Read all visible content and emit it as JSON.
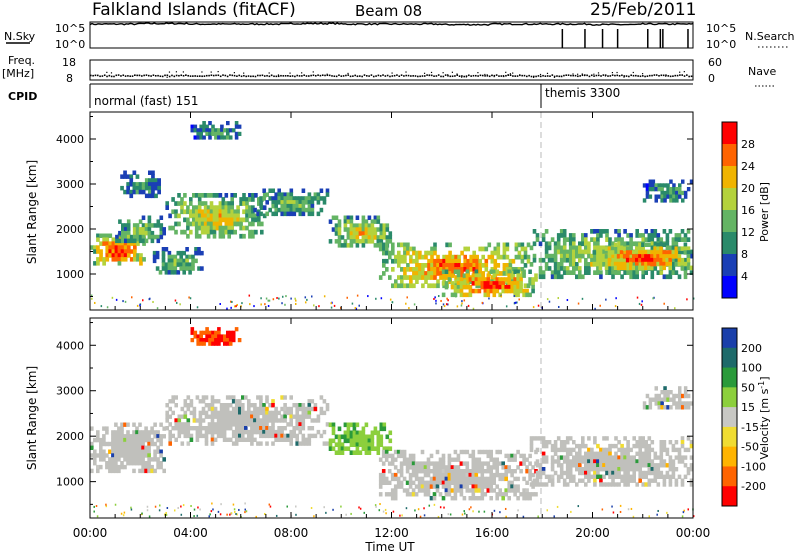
{
  "header": {
    "title": "Falkland Islands (fitACF)",
    "beam": "Beam 08",
    "date": "25/Feb/2011"
  },
  "colors": {
    "axis": "#000000",
    "marker": "#bbbbbb",
    "gs_gray": "#c0c0bc"
  },
  "chart_data": [
    {
      "type": "line",
      "name_label": "N.Sky",
      "right_label": "N.Search",
      "y_ticks_left": [
        "10^5",
        "10^0"
      ],
      "y_ticks_right": [
        "10^5",
        "10^0"
      ],
      "x": [
        "00:00",
        "02:00",
        "04:00",
        "06:00",
        "08:00",
        "10:00",
        "12:00",
        "14:00",
        "16:00",
        "18:00",
        "20:00",
        "22:00",
        "23:59"
      ],
      "series": [
        {
          "values": [
            4.6,
            4.7,
            4.6,
            4.6,
            4.7,
            4.6,
            4.6,
            4.5,
            4.6,
            4.6,
            4.5,
            4.6,
            4.5
          ]
        }
      ],
      "search_spikes_ut": [
        18.8,
        19.7,
        20.4,
        21.0,
        22.2,
        22.7,
        22.8,
        23.8
      ]
    },
    {
      "type": "scatter",
      "name_label": "Freq.",
      "unit_label": "[MHz]",
      "y_ticks_left": [
        "18",
        "8"
      ],
      "right_label": "Nave",
      "y_ticks_right": [
        "60",
        "0"
      ],
      "freq_mhz": 10.5,
      "nave": 25
    },
    {
      "type": "table",
      "name_label": "CPID",
      "modes": [
        {
          "label": "normal (fast) 151",
          "start_ut": 0.0
        },
        {
          "label": "themis 3300",
          "start_ut": 17.95
        }
      ]
    },
    {
      "type": "heatmap",
      "quantity": "power",
      "ylabel": "Slant Range [km]",
      "yticks": [
        "1000",
        "2000",
        "3000",
        "4000"
      ],
      "ylim": [
        200,
        4600
      ],
      "colorbar_label": "Power [dB]",
      "colorbar_ticks": [
        "4",
        "8",
        "12",
        "16",
        "20",
        "24",
        "28"
      ],
      "colorbar_colors": [
        "#0000ff",
        "#1a3fb5",
        "#2a8a6a",
        "#64b464",
        "#b4d23c",
        "#f0b400",
        "#ff6400",
        "#ff0000"
      ],
      "echo_bands": [
        {
          "t0": 0.0,
          "t1": 2.2,
          "r0": 1200,
          "r1": 1900,
          "power_db": 26
        },
        {
          "t0": 1.0,
          "t1": 3.0,
          "r0": 1700,
          "r1": 2300,
          "power_db": 14
        },
        {
          "t0": 1.2,
          "t1": 2.8,
          "r0": 2700,
          "r1": 3300,
          "power_db": 10
        },
        {
          "t0": 2.5,
          "t1": 4.5,
          "r0": 1000,
          "r1": 1600,
          "power_db": 12
        },
        {
          "t0": 3.0,
          "t1": 7.0,
          "r0": 1800,
          "r1": 2800,
          "power_db": 18
        },
        {
          "t0": 4.0,
          "t1": 6.0,
          "r0": 4000,
          "r1": 4400,
          "power_db": 9
        },
        {
          "t0": 6.5,
          "t1": 9.5,
          "r0": 2300,
          "r1": 2900,
          "power_db": 12
        },
        {
          "t0": 9.5,
          "t1": 12.0,
          "r0": 1600,
          "r1": 2300,
          "power_db": 18
        },
        {
          "t0": 11.5,
          "t1": 17.5,
          "r0": 700,
          "r1": 1700,
          "power_db": 24
        },
        {
          "t0": 14.0,
          "t1": 17.8,
          "r0": 500,
          "r1": 1100,
          "power_db": 26
        },
        {
          "t0": 17.5,
          "t1": 23.99,
          "r0": 900,
          "r1": 2000,
          "power_db": 16
        },
        {
          "t0": 20.0,
          "t1": 23.99,
          "r0": 1100,
          "r1": 1700,
          "power_db": 26
        },
        {
          "t0": 22.0,
          "t1": 23.99,
          "r0": 2600,
          "r1": 3100,
          "power_db": 10
        }
      ]
    },
    {
      "type": "heatmap",
      "quantity": "velocity",
      "ylabel": "Slant Range [km]",
      "yticks": [
        "1000",
        "2000",
        "3000",
        "4000"
      ],
      "ylim": [
        200,
        4600
      ],
      "colorbar_label": "Velocity [m s",
      "colorbar_label_sup": "-1",
      "colorbar_label_end": "]",
      "colorbar_ticks": [
        "200",
        "100",
        "50",
        "15",
        "-15",
        "-50",
        "-100",
        "-200"
      ],
      "colorbar_colors": [
        "#1a3faa",
        "#1e6a6a",
        "#2a9a3a",
        "#8ccf3c",
        "#c8c8c4",
        "#f0dc32",
        "#ffb400",
        "#ff6400",
        "#ff0000"
      ],
      "echo_bands": [
        {
          "t0": 0.0,
          "t1": 3.0,
          "r0": 1200,
          "r1": 2300,
          "vel": 0
        },
        {
          "t0": 3.0,
          "t1": 9.5,
          "r0": 1800,
          "r1": 2900,
          "vel": 0
        },
        {
          "t0": 9.5,
          "t1": 12.0,
          "r0": 1600,
          "r1": 2300,
          "vel": 30
        },
        {
          "t0": 11.5,
          "t1": 17.8,
          "r0": 600,
          "r1": 1700,
          "vel": 0
        },
        {
          "t0": 17.5,
          "t1": 23.99,
          "r0": 900,
          "r1": 2000,
          "vel": 0
        },
        {
          "t0": 4.0,
          "t1": 6.0,
          "r0": 4000,
          "r1": 4400,
          "vel": -150
        },
        {
          "t0": 22.0,
          "t1": 23.99,
          "r0": 2600,
          "r1": 3100,
          "vel": 0
        }
      ]
    }
  ],
  "xaxis": {
    "label": "Time UT",
    "ticks": [
      "00:00",
      "04:00",
      "08:00",
      "12:00",
      "16:00",
      "20:00",
      "00:00"
    ],
    "xlim_hours": [
      0,
      24
    ]
  }
}
